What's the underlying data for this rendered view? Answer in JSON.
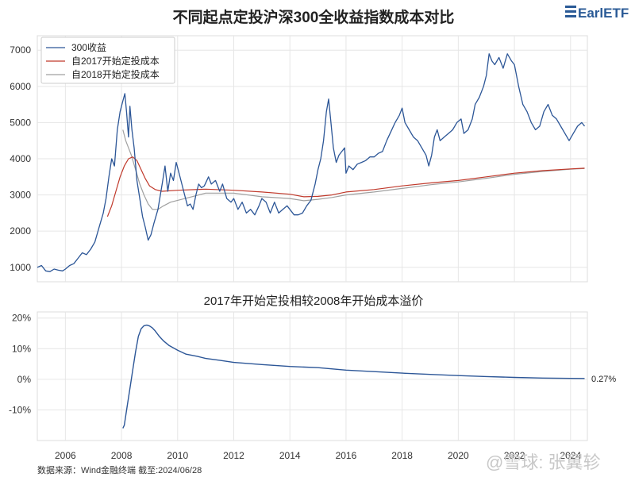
{
  "logo": {
    "text": "EarlETF"
  },
  "watermark": "@雪球: 张翼轸",
  "source": "数据来源：Wind金融终端 截至:2024/06/28",
  "chart_data": [
    {
      "type": "line",
      "title": "不同起点定投沪深300全收益指数成本对比",
      "xlim": [
        2005.0,
        2024.6
      ],
      "ylim": [
        600,
        7400
      ],
      "y_ticks": [
        1000,
        2000,
        3000,
        4000,
        5000,
        6000,
        7000
      ],
      "grid": true,
      "legend_position": "top-left",
      "series": [
        {
          "name": "300收益",
          "color": "#2c5697",
          "points": [
            [
              2005.0,
              1000
            ],
            [
              2005.15,
              1050
            ],
            [
              2005.3,
              900
            ],
            [
              2005.45,
              880
            ],
            [
              2005.6,
              950
            ],
            [
              2005.75,
              920
            ],
            [
              2005.9,
              900
            ],
            [
              2006.0,
              950
            ],
            [
              2006.15,
              1050
            ],
            [
              2006.3,
              1100
            ],
            [
              2006.45,
              1250
            ],
            [
              2006.6,
              1400
            ],
            [
              2006.75,
              1350
            ],
            [
              2006.9,
              1500
            ],
            [
              2007.05,
              1700
            ],
            [
              2007.2,
              2100
            ],
            [
              2007.35,
              2500
            ],
            [
              2007.45,
              2900
            ],
            [
              2007.55,
              3500
            ],
            [
              2007.65,
              4000
            ],
            [
              2007.75,
              3800
            ],
            [
              2007.85,
              4800
            ],
            [
              2007.95,
              5300
            ],
            [
              2008.05,
              5600
            ],
            [
              2008.12,
              5800
            ],
            [
              2008.18,
              5300
            ],
            [
              2008.25,
              4600
            ],
            [
              2008.3,
              5450
            ],
            [
              2008.37,
              4800
            ],
            [
              2008.45,
              4300
            ],
            [
              2008.55,
              3400
            ],
            [
              2008.65,
              2900
            ],
            [
              2008.75,
              2400
            ],
            [
              2008.85,
              2100
            ],
            [
              2008.95,
              1750
            ],
            [
              2009.05,
              1900
            ],
            [
              2009.15,
              2200
            ],
            [
              2009.3,
              2600
            ],
            [
              2009.45,
              3300
            ],
            [
              2009.55,
              3800
            ],
            [
              2009.65,
              3100
            ],
            [
              2009.75,
              3600
            ],
            [
              2009.85,
              3400
            ],
            [
              2009.95,
              3900
            ],
            [
              2010.05,
              3600
            ],
            [
              2010.15,
              3300
            ],
            [
              2010.25,
              3000
            ],
            [
              2010.35,
              2700
            ],
            [
              2010.45,
              2750
            ],
            [
              2010.55,
              2600
            ],
            [
              2010.65,
              3000
            ],
            [
              2010.75,
              3300
            ],
            [
              2010.85,
              3200
            ],
            [
              2010.95,
              3250
            ],
            [
              2011.1,
              3500
            ],
            [
              2011.2,
              3300
            ],
            [
              2011.35,
              3400
            ],
            [
              2011.5,
              3100
            ],
            [
              2011.6,
              3300
            ],
            [
              2011.75,
              2900
            ],
            [
              2011.9,
              2800
            ],
            [
              2012.0,
              2900
            ],
            [
              2012.15,
              2600
            ],
            [
              2012.3,
              2800
            ],
            [
              2012.45,
              2500
            ],
            [
              2012.6,
              2600
            ],
            [
              2012.75,
              2450
            ],
            [
              2012.9,
              2700
            ],
            [
              2013.0,
              2900
            ],
            [
              2013.15,
              2800
            ],
            [
              2013.3,
              2500
            ],
            [
              2013.45,
              2800
            ],
            [
              2013.6,
              2500
            ],
            [
              2013.75,
              2600
            ],
            [
              2013.9,
              2700
            ],
            [
              2014.0,
              2600
            ],
            [
              2014.15,
              2450
            ],
            [
              2014.3,
              2450
            ],
            [
              2014.45,
              2500
            ],
            [
              2014.6,
              2700
            ],
            [
              2014.75,
              2850
            ],
            [
              2014.9,
              3300
            ],
            [
              2015.0,
              3700
            ],
            [
              2015.1,
              4000
            ],
            [
              2015.2,
              4500
            ],
            [
              2015.3,
              5300
            ],
            [
              2015.38,
              5650
            ],
            [
              2015.45,
              5100
            ],
            [
              2015.55,
              4300
            ],
            [
              2015.65,
              3900
            ],
            [
              2015.75,
              4100
            ],
            [
              2015.85,
              4200
            ],
            [
              2015.95,
              4300
            ],
            [
              2016.0,
              3600
            ],
            [
              2016.1,
              3800
            ],
            [
              2016.25,
              3700
            ],
            [
              2016.4,
              3850
            ],
            [
              2016.55,
              3900
            ],
            [
              2016.7,
              3950
            ],
            [
              2016.85,
              4050
            ],
            [
              2017.0,
              4050
            ],
            [
              2017.15,
              4150
            ],
            [
              2017.3,
              4200
            ],
            [
              2017.45,
              4500
            ],
            [
              2017.6,
              4750
            ],
            [
              2017.75,
              5000
            ],
            [
              2017.9,
              5200
            ],
            [
              2018.0,
              5400
            ],
            [
              2018.1,
              5000
            ],
            [
              2018.25,
              4800
            ],
            [
              2018.4,
              4600
            ],
            [
              2018.55,
              4500
            ],
            [
              2018.7,
              4300
            ],
            [
              2018.85,
              4100
            ],
            [
              2018.95,
              3800
            ],
            [
              2019.05,
              4100
            ],
            [
              2019.15,
              4600
            ],
            [
              2019.25,
              4800
            ],
            [
              2019.35,
              4500
            ],
            [
              2019.5,
              4600
            ],
            [
              2019.65,
              4700
            ],
            [
              2019.8,
              4800
            ],
            [
              2019.95,
              5000
            ],
            [
              2020.1,
              5100
            ],
            [
              2020.2,
              4700
            ],
            [
              2020.35,
              4800
            ],
            [
              2020.5,
              5100
            ],
            [
              2020.6,
              5500
            ],
            [
              2020.75,
              5700
            ],
            [
              2020.9,
              6000
            ],
            [
              2021.0,
              6300
            ],
            [
              2021.1,
              6900
            ],
            [
              2021.2,
              6700
            ],
            [
              2021.3,
              6600
            ],
            [
              2021.45,
              6800
            ],
            [
              2021.6,
              6500
            ],
            [
              2021.75,
              6900
            ],
            [
              2021.9,
              6700
            ],
            [
              2022.0,
              6600
            ],
            [
              2022.15,
              6000
            ],
            [
              2022.3,
              5500
            ],
            [
              2022.45,
              5300
            ],
            [
              2022.6,
              5000
            ],
            [
              2022.75,
              4800
            ],
            [
              2022.9,
              4900
            ],
            [
              2023.05,
              5300
            ],
            [
              2023.2,
              5500
            ],
            [
              2023.35,
              5200
            ],
            [
              2023.5,
              5100
            ],
            [
              2023.65,
              4900
            ],
            [
              2023.8,
              4700
            ],
            [
              2023.95,
              4500
            ],
            [
              2024.1,
              4700
            ],
            [
              2024.25,
              4900
            ],
            [
              2024.4,
              5000
            ],
            [
              2024.5,
              4900
            ]
          ]
        },
        {
          "name": "自2017开始定投成本",
          "color": "#c0392b",
          "points": [
            [
              2007.5,
              2400
            ],
            [
              2007.65,
              2700
            ],
            [
              2007.8,
              3100
            ],
            [
              2007.95,
              3500
            ],
            [
              2008.1,
              3800
            ],
            [
              2008.25,
              4000
            ],
            [
              2008.4,
              4050
            ],
            [
              2008.55,
              3950
            ],
            [
              2008.7,
              3700
            ],
            [
              2008.85,
              3450
            ],
            [
              2009.0,
              3250
            ],
            [
              2009.2,
              3150
            ],
            [
              2009.45,
              3100
            ],
            [
              2010.0,
              3130
            ],
            [
              2011.0,
              3160
            ],
            [
              2012.0,
              3130
            ],
            [
              2013.0,
              3080
            ],
            [
              2014.0,
              3020
            ],
            [
              2014.5,
              2950
            ],
            [
              2015.0,
              2960
            ],
            [
              2015.5,
              3000
            ],
            [
              2016.0,
              3080
            ],
            [
              2017.0,
              3150
            ],
            [
              2018.0,
              3250
            ],
            [
              2019.0,
              3330
            ],
            [
              2020.0,
              3400
            ],
            [
              2021.0,
              3500
            ],
            [
              2022.0,
              3600
            ],
            [
              2023.0,
              3670
            ],
            [
              2024.0,
              3720
            ],
            [
              2024.5,
              3740
            ]
          ]
        },
        {
          "name": "自2018开始定投成本",
          "color": "#a0a0a0",
          "points": [
            [
              2008.05,
              4800
            ],
            [
              2008.15,
              4500
            ],
            [
              2008.25,
              4300
            ],
            [
              2008.35,
              4100
            ],
            [
              2008.5,
              3700
            ],
            [
              2008.65,
              3300
            ],
            [
              2008.8,
              3000
            ],
            [
              2008.95,
              2750
            ],
            [
              2009.1,
              2600
            ],
            [
              2009.3,
              2600
            ],
            [
              2009.5,
              2700
            ],
            [
              2009.75,
              2800
            ],
            [
              2010.0,
              2850
            ],
            [
              2010.5,
              2950
            ],
            [
              2011.0,
              3050
            ],
            [
              2012.0,
              3050
            ],
            [
              2013.0,
              2950
            ],
            [
              2014.0,
              2900
            ],
            [
              2014.5,
              2840
            ],
            [
              2015.0,
              2880
            ],
            [
              2015.5,
              2930
            ],
            [
              2016.0,
              3000
            ],
            [
              2017.0,
              3080
            ],
            [
              2018.0,
              3180
            ],
            [
              2019.0,
              3280
            ],
            [
              2020.0,
              3360
            ],
            [
              2021.0,
              3460
            ],
            [
              2022.0,
              3570
            ],
            [
              2023.0,
              3650
            ],
            [
              2024.0,
              3710
            ],
            [
              2024.5,
              3730
            ]
          ]
        }
      ]
    },
    {
      "type": "line",
      "title": "2017年开始定投相较2008年开始成本溢价",
      "xlim": [
        2005.0,
        2024.6
      ],
      "ylim": [
        -0.2,
        0.22
      ],
      "y_ticks": [
        -0.1,
        0,
        0.1,
        0.2
      ],
      "y_tick_labels": [
        "-10%",
        "0%",
        "10%",
        "20%"
      ],
      "x_ticks": [
        2006,
        2008,
        2010,
        2012,
        2014,
        2016,
        2018,
        2020,
        2022,
        2024
      ],
      "end_label": "0.27%",
      "grid": true,
      "series": [
        {
          "color": "#2c5697",
          "points": [
            [
              2008.05,
              -0.16
            ],
            [
              2008.1,
              -0.15
            ],
            [
              2008.2,
              -0.09
            ],
            [
              2008.3,
              -0.03
            ],
            [
              2008.4,
              0.03
            ],
            [
              2008.5,
              0.09
            ],
            [
              2008.6,
              0.14
            ],
            [
              2008.7,
              0.165
            ],
            [
              2008.8,
              0.175
            ],
            [
              2008.9,
              0.177
            ],
            [
              2009.0,
              0.174
            ],
            [
              2009.1,
              0.168
            ],
            [
              2009.2,
              0.158
            ],
            [
              2009.35,
              0.14
            ],
            [
              2009.5,
              0.125
            ],
            [
              2009.7,
              0.11
            ],
            [
              2010.0,
              0.095
            ],
            [
              2010.3,
              0.082
            ],
            [
              2010.7,
              0.075
            ],
            [
              2011.0,
              0.068
            ],
            [
              2011.5,
              0.062
            ],
            [
              2012.0,
              0.055
            ],
            [
              2013.0,
              0.048
            ],
            [
              2014.0,
              0.042
            ],
            [
              2015.0,
              0.038
            ],
            [
              2016.0,
              0.03
            ],
            [
              2017.0,
              0.025
            ],
            [
              2018.0,
              0.02
            ],
            [
              2019.0,
              0.016
            ],
            [
              2020.0,
              0.012
            ],
            [
              2021.0,
              0.009
            ],
            [
              2022.0,
              0.006
            ],
            [
              2023.0,
              0.004
            ],
            [
              2024.0,
              0.003
            ],
            [
              2024.5,
              0.0027
            ]
          ]
        }
      ]
    }
  ]
}
